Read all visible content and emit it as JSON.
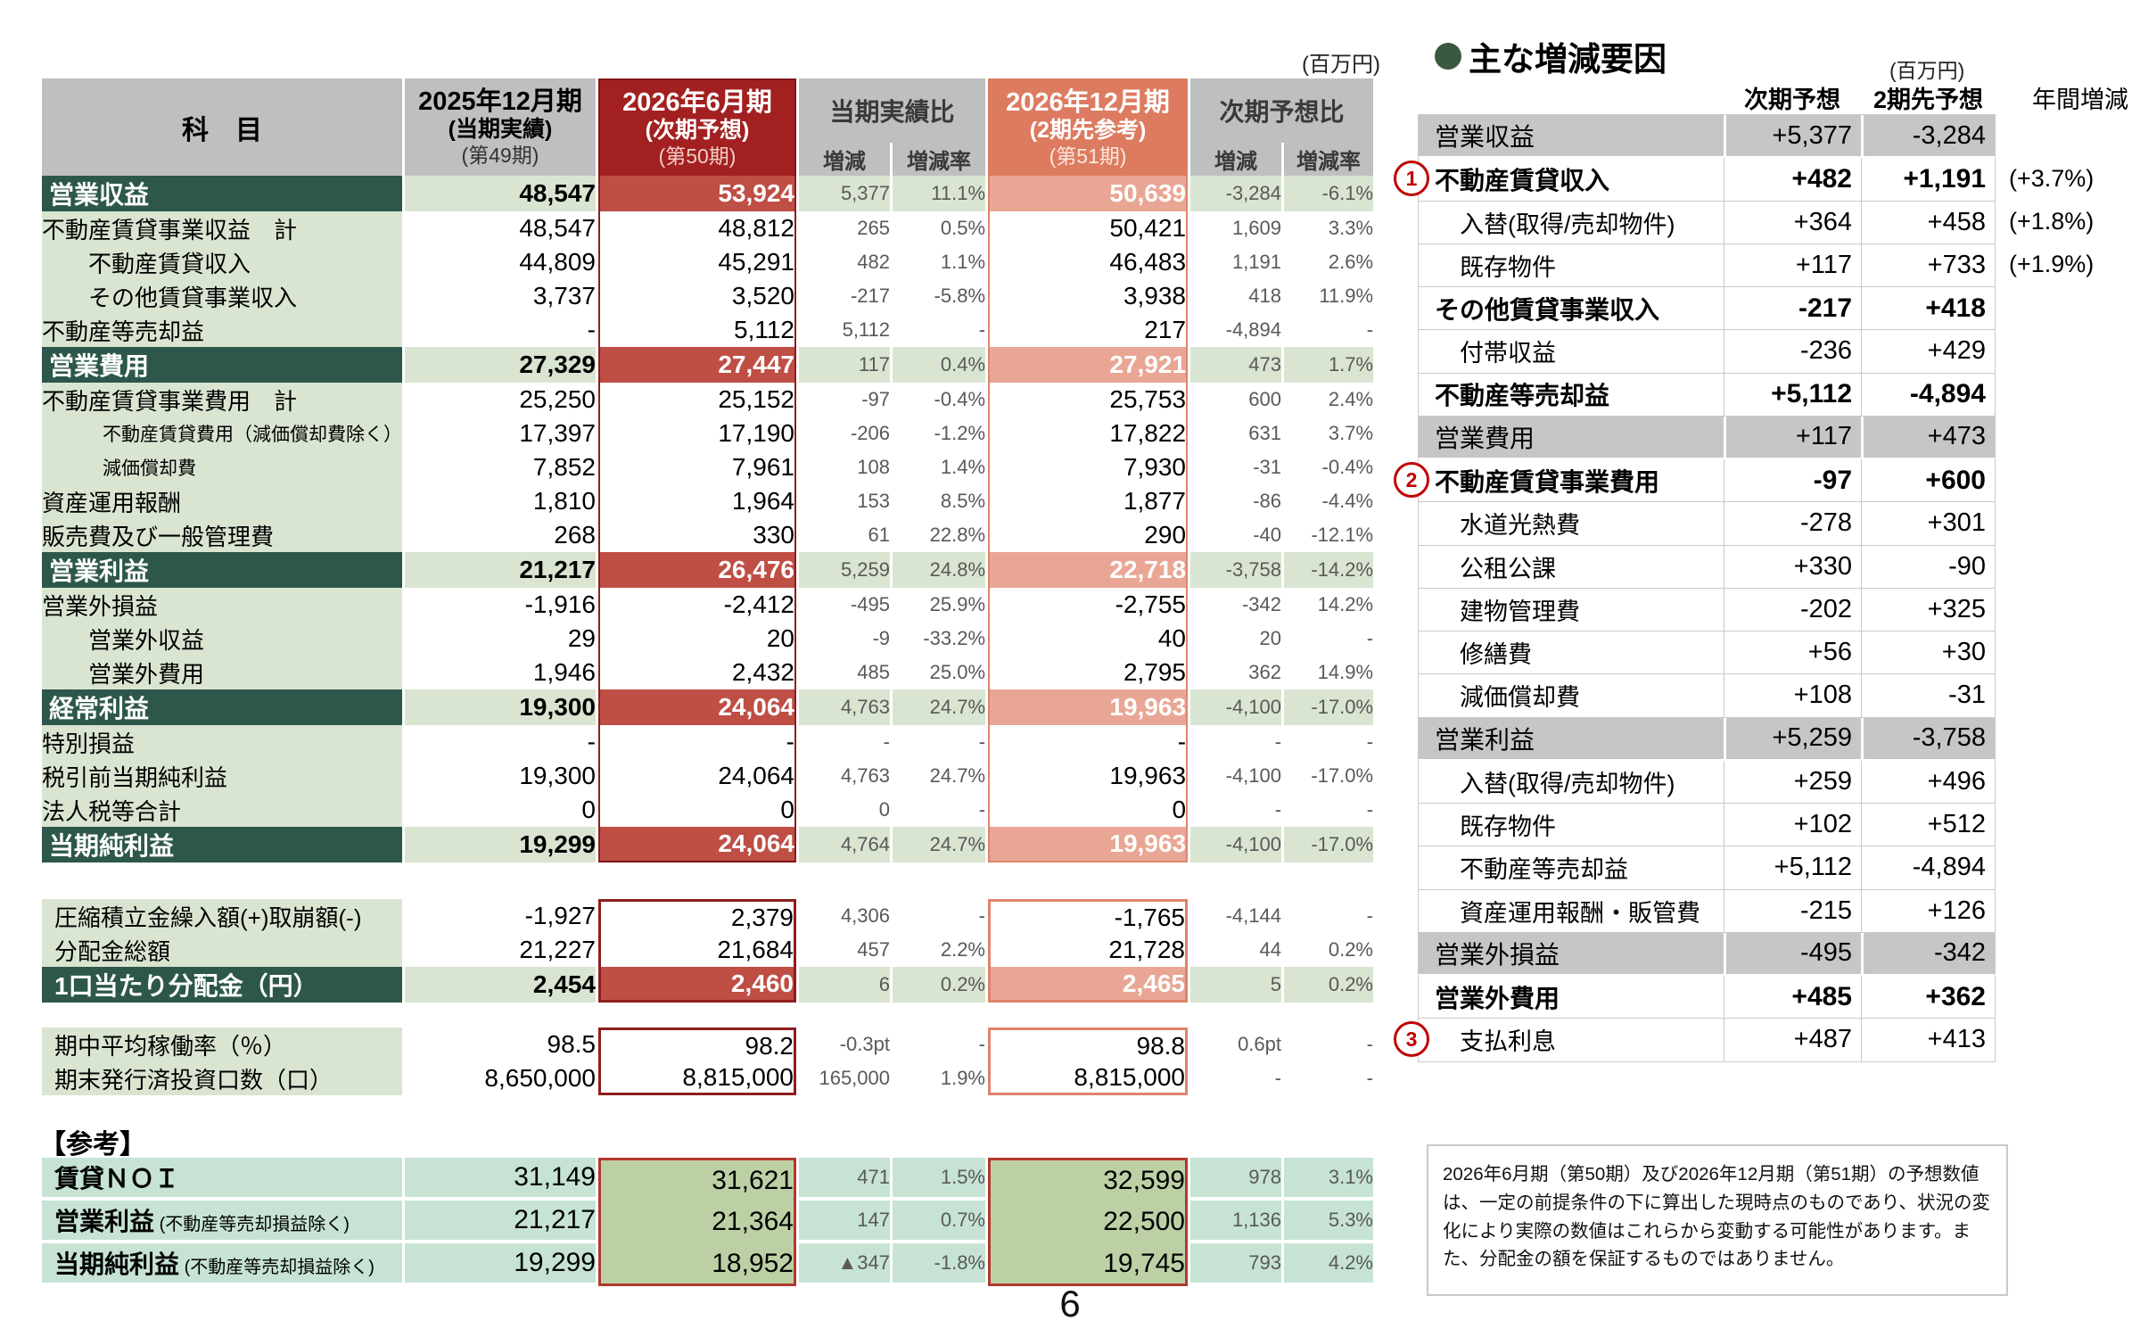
{
  "page": {
    "number": "6"
  },
  "left_table": {
    "unit": "(百万円)",
    "header": {
      "subject": "科　目",
      "col_2025": {
        "title": "2025年12月期",
        "subtitle": "(当期実績)",
        "period": "(第49期)"
      },
      "col_2026_06": {
        "title": "2026年6月期",
        "subtitle": "(次期予想)",
        "period": "(第50期)"
      },
      "col_2026_12": {
        "title": "2026年12月期",
        "subtitle": "(2期先参考)",
        "period": "(第51期)"
      },
      "comp_actual": "当期実績比",
      "comp_forecast": "次期予想比",
      "inc": "増減",
      "rate": "増減率"
    },
    "rows": [
      {
        "label": "営業収益",
        "style": "sec",
        "v": [
          "48,547",
          "53,924",
          "5,377",
          "11.1%",
          "50,639",
          "-3,284",
          "-6.1%"
        ]
      },
      {
        "label": "不動産賃貸事業収益　計",
        "style": "sub",
        "v": [
          "48,547",
          "48,812",
          "265",
          "0.5%",
          "50,421",
          "1,609",
          "3.3%"
        ]
      },
      {
        "label": "不動産賃貸収入",
        "style": "sub2",
        "v": [
          "44,809",
          "45,291",
          "482",
          "1.1%",
          "46,483",
          "1,191",
          "2.6%"
        ]
      },
      {
        "label": "その他賃貸事業収入",
        "style": "sub2",
        "v": [
          "3,737",
          "3,520",
          "-217",
          "-5.8%",
          "3,938",
          "418",
          "11.9%"
        ]
      },
      {
        "label": "不動産等売却益",
        "style": "sub",
        "v": [
          "-",
          "5,112",
          "5,112",
          "-",
          "217",
          "-4,894",
          "-"
        ]
      },
      {
        "label": "営業費用",
        "style": "sec",
        "v": [
          "27,329",
          "27,447",
          "117",
          "0.4%",
          "27,921",
          "473",
          "1.7%"
        ]
      },
      {
        "label": "不動産賃貸事業費用　計",
        "style": "sub",
        "v": [
          "25,250",
          "25,152",
          "-97",
          "-0.4%",
          "25,753",
          "600",
          "2.4%"
        ]
      },
      {
        "label": "不動産賃貸費用（減価償却費除く）",
        "style": "small",
        "v": [
          "17,397",
          "17,190",
          "-206",
          "-1.2%",
          "17,822",
          "631",
          "3.7%"
        ]
      },
      {
        "label": "減価償却費",
        "style": "small",
        "v": [
          "7,852",
          "7,961",
          "108",
          "1.4%",
          "7,930",
          "-31",
          "-0.4%"
        ]
      },
      {
        "label": "資産運用報酬",
        "style": "sub",
        "v": [
          "1,810",
          "1,964",
          "153",
          "8.5%",
          "1,877",
          "-86",
          "-4.4%"
        ]
      },
      {
        "label": "販売費及び一般管理費",
        "style": "sub",
        "v": [
          "268",
          "330",
          "61",
          "22.8%",
          "290",
          "-40",
          "-12.1%"
        ]
      },
      {
        "label": "営業利益",
        "style": "sec",
        "v": [
          "21,217",
          "26,476",
          "5,259",
          "24.8%",
          "22,718",
          "-3,758",
          "-14.2%"
        ]
      },
      {
        "label": "営業外損益",
        "style": "sub",
        "v": [
          "-1,916",
          "-2,412",
          "-495",
          "25.9%",
          "-2,755",
          "-342",
          "14.2%"
        ]
      },
      {
        "label": "営業外収益",
        "style": "sub2",
        "v": [
          "29",
          "20",
          "-9",
          "-33.2%",
          "40",
          "20",
          "-"
        ]
      },
      {
        "label": "営業外費用",
        "style": "sub2",
        "v": [
          "1,946",
          "2,432",
          "485",
          "25.0%",
          "2,795",
          "362",
          "14.9%"
        ]
      },
      {
        "label": "経常利益",
        "style": "sec",
        "v": [
          "19,300",
          "24,064",
          "4,763",
          "24.7%",
          "19,963",
          "-4,100",
          "-17.0%"
        ]
      },
      {
        "label": "特別損益",
        "style": "sub",
        "v": [
          "-",
          "-",
          "-",
          "-",
          "-",
          "-",
          "-"
        ]
      },
      {
        "label": "税引前当期純利益",
        "style": "sub",
        "v": [
          "19,300",
          "24,064",
          "4,763",
          "24.7%",
          "19,963",
          "-4,100",
          "-17.0%"
        ]
      },
      {
        "label": "法人税等合計",
        "style": "sub",
        "v": [
          "0",
          "0",
          "0",
          "-",
          "0",
          "-",
          "-"
        ]
      },
      {
        "label": "当期純利益",
        "style": "sec",
        "v": [
          "19,299",
          "24,064",
          "4,764",
          "24.7%",
          "19,963",
          "-4,100",
          "-17.0%"
        ]
      }
    ],
    "block2": [
      {
        "label": "圧縮積立金繰入額(+)取崩額(-)",
        "style": "sub",
        "v": [
          "-1,927",
          "2,379",
          "4,306",
          "-",
          "-1,765",
          "-4,144",
          "-"
        ]
      },
      {
        "label": "分配金総額",
        "style": "sub",
        "v": [
          "21,227",
          "21,684",
          "457",
          "2.2%",
          "21,728",
          "44",
          "0.2%"
        ]
      },
      {
        "label": "1口当たり分配金（円）",
        "style": "sec",
        "v": [
          "2,454",
          "2,460",
          "6",
          "0.2%",
          "2,465",
          "5",
          "0.2%"
        ]
      }
    ],
    "block3": [
      {
        "label": "期中平均稼働率（％）",
        "style": "sub",
        "v": [
          "98.5",
          "98.2",
          "-0.3pt",
          "-",
          "98.8",
          "0.6pt",
          "-"
        ]
      },
      {
        "label": "期末発行済投資口数（口）",
        "style": "sub",
        "v": [
          "8,650,000",
          "8,815,000",
          "165,000",
          "1.9%",
          "8,815,000",
          "-",
          "-"
        ]
      }
    ],
    "reference": {
      "heading": "【参考】",
      "rows": [
        {
          "label": "賃貸ＮＯＩ",
          "suffix": "",
          "v": [
            "31,149",
            "31,621",
            "471",
            "1.5%",
            "32,599",
            "978",
            "3.1%"
          ]
        },
        {
          "label": "営業利益",
          "suffix": " (不動産等売却損益除く)",
          "v": [
            "21,217",
            "21,364",
            "147",
            "0.7%",
            "22,500",
            "1,136",
            "5.3%"
          ]
        },
        {
          "label": "当期純利益",
          "suffix": " (不動産等売却損益除く)",
          "v": [
            "19,299",
            "18,952",
            "▲347",
            "-1.8%",
            "19,745",
            "793",
            "4.2%"
          ]
        }
      ]
    }
  },
  "right_panel": {
    "title": "主な増減要因",
    "unit": "(百万円)",
    "headers": {
      "next": "次期予想",
      "after_next": "2期先予想",
      "annual": "年間増減"
    },
    "rows": [
      {
        "label": "営業収益",
        "style": "gray",
        "v1": "+5,377",
        "v2": "-3,284",
        "annual": ""
      },
      {
        "label": "不動産賃貸収入",
        "style": "bold",
        "v1": "+482",
        "v2": "+1,191",
        "annual": "(+3.7%)",
        "marker": "1"
      },
      {
        "label": "入替(取得/売却物件)",
        "style": "sub",
        "v1": "+364",
        "v2": "+458",
        "annual": "(+1.8%)"
      },
      {
        "label": "既存物件",
        "style": "sub",
        "v1": "+117",
        "v2": "+733",
        "annual": "(+1.9%)"
      },
      {
        "label": "その他賃貸事業収入",
        "style": "bold",
        "v1": "-217",
        "v2": "+418",
        "annual": ""
      },
      {
        "label": "付帯収益",
        "style": "sub",
        "v1": "-236",
        "v2": "+429",
        "annual": ""
      },
      {
        "label": "不動産等売却益",
        "style": "bold",
        "v1": "+5,112",
        "v2": "-4,894",
        "annual": ""
      },
      {
        "label": "営業費用",
        "style": "gray",
        "v1": "+117",
        "v2": "+473",
        "annual": ""
      },
      {
        "label": "不動産賃貸事業費用",
        "style": "bold",
        "v1": "-97",
        "v2": "+600",
        "annual": "",
        "marker": "2"
      },
      {
        "label": "水道光熱費",
        "style": "sub",
        "v1": "-278",
        "v2": "+301",
        "annual": ""
      },
      {
        "label": "公租公課",
        "style": "sub",
        "v1": "+330",
        "v2": "-90",
        "annual": ""
      },
      {
        "label": "建物管理費",
        "style": "sub",
        "v1": "-202",
        "v2": "+325",
        "annual": ""
      },
      {
        "label": "修繕費",
        "style": "sub",
        "v1": "+56",
        "v2": "+30",
        "annual": ""
      },
      {
        "label": "減価償却費",
        "style": "sub",
        "v1": "+108",
        "v2": "-31",
        "annual": ""
      },
      {
        "label": "営業利益",
        "style": "gray",
        "v1": "+5,259",
        "v2": "-3,758",
        "annual": ""
      },
      {
        "label": "入替(取得/売却物件)",
        "style": "sub",
        "v1": "+259",
        "v2": "+496",
        "annual": ""
      },
      {
        "label": "既存物件",
        "style": "sub",
        "v1": "+102",
        "v2": "+512",
        "annual": ""
      },
      {
        "label": "不動産等売却益",
        "style": "sub",
        "v1": "+5,112",
        "v2": "-4,894",
        "annual": ""
      },
      {
        "label": "資産運用報酬・販管費",
        "style": "sub",
        "v1": "-215",
        "v2": "+126",
        "annual": ""
      },
      {
        "label": "営業外損益",
        "style": "gray",
        "v1": "-495",
        "v2": "-342",
        "annual": ""
      },
      {
        "label": "営業外費用",
        "style": "bold",
        "v1": "+485",
        "v2": "+362",
        "annual": ""
      },
      {
        "label": "支払利息",
        "style": "sub",
        "v1": "+487",
        "v2": "+413",
        "annual": "",
        "marker": "3"
      }
    ]
  },
  "footnote": "2026年6月期（第50期）及び2026年12月期（第51期）の予想数値は、一定の前提条件の下に算出した現時点のものであり、状況の変化により実際の数値はこれらから変動する可能性があります。また、分配金の額を保証するものではありません。",
  "colors": {
    "section_green": "#2d574a",
    "light_green": "#d9e5d1",
    "header_gray": "#bfbfbf",
    "forecast_red": "#a32020",
    "forecast_red_value": "#bf4e45",
    "reference_salmon": "#dd7b60",
    "reference_salmon_value": "#e9a694",
    "ref_teal": "#c6e3d4",
    "ref_olive": "#bdd0a5",
    "marker_red": "#c00000"
  }
}
